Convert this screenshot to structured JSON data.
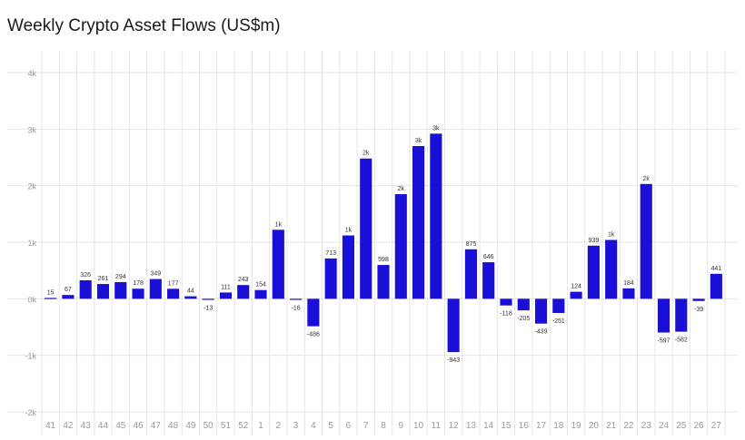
{
  "title": "Weekly Crypto Asset Flows (US$m)",
  "colors": {
    "bar": "#1a0fd6",
    "grid": "#e6e6e6",
    "tick_text": "#9a9a9a",
    "label_text": "#333333"
  },
  "chart_data": {
    "type": "bar",
    "title": "Weekly Crypto Asset Flows (US$m)",
    "xlabel": "",
    "ylabel": "",
    "ylim": [
      -2000,
      4000
    ],
    "yticks": [
      -2000,
      -1000,
      0,
      1000,
      2000,
      3000,
      4000
    ],
    "ytick_labels": [
      "-2k",
      "-1k",
      "0k",
      "1k",
      "2k",
      "3k",
      "4k"
    ],
    "grid": true,
    "legend": "none",
    "categories": [
      "41",
      "42",
      "43",
      "44",
      "45",
      "46",
      "47",
      "48",
      "49",
      "50",
      "51",
      "52",
      "1",
      "2",
      "3",
      "4",
      "5",
      "6",
      "7",
      "8",
      "9",
      "10",
      "11",
      "12",
      "13",
      "14",
      "15",
      "16",
      "17",
      "18",
      "19",
      "20",
      "21",
      "22",
      "23",
      "24",
      "25",
      "26",
      "27"
    ],
    "values": [
      15,
      67,
      326,
      261,
      294,
      178,
      349,
      177,
      44,
      -13,
      111,
      243,
      154,
      1220,
      -16,
      -486,
      713,
      1120,
      2480,
      598,
      1850,
      2700,
      2920,
      -943,
      875,
      646,
      -118,
      -205,
      -439,
      -251,
      124,
      939,
      1040,
      184,
      2030,
      -597,
      -582,
      -39,
      441
    ],
    "data_labels": [
      "15",
      "67",
      "326",
      "261",
      "294",
      "178",
      "349",
      "177",
      "44",
      "-13",
      "111",
      "243",
      "154",
      "1k",
      "-16",
      "-486",
      "713",
      "1k",
      "2k",
      "598",
      "2k",
      "3k",
      "3k",
      "-943",
      "875",
      "646",
      "-118",
      "-205",
      "-439",
      "-251",
      "124",
      "939",
      "1k",
      "184",
      "2k",
      "-597",
      "-582",
      "-39",
      "441"
    ]
  }
}
